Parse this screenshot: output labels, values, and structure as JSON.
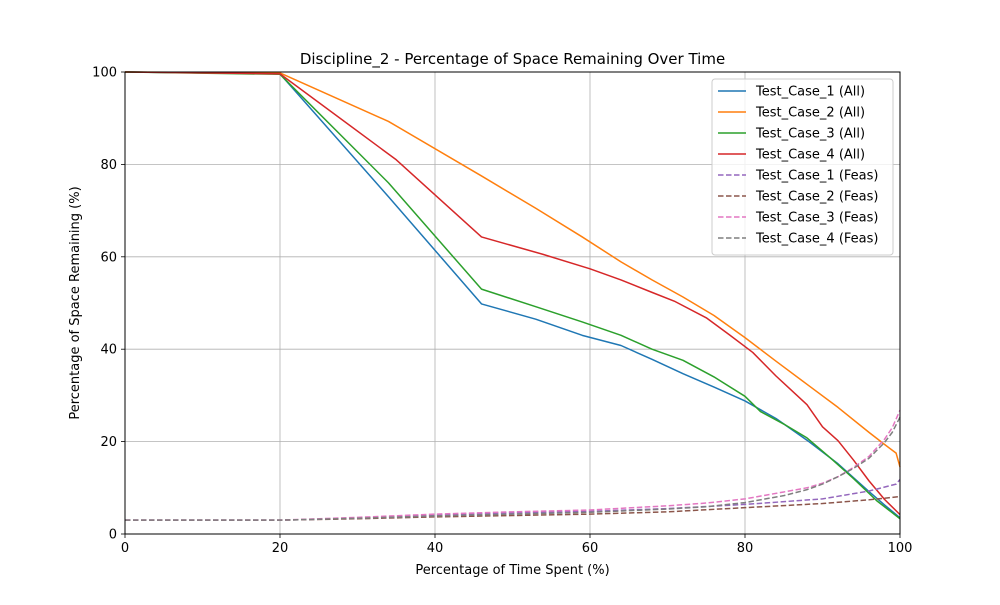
{
  "chart_data": {
    "type": "line",
    "title": "Discipline_2 - Percentage of Space Remaining Over Time",
    "xlabel": "Percentage of Time Spent (%)",
    "ylabel": "Percentage of Space Remaining (%)",
    "xlim": [
      0,
      100
    ],
    "ylim": [
      0,
      100
    ],
    "xticks": [
      0,
      20,
      40,
      60,
      80,
      100
    ],
    "yticks": [
      0,
      20,
      40,
      60,
      80,
      100
    ],
    "grid": true,
    "legend_position": "top-right",
    "series": [
      {
        "name": "Test_Case_1 (All)",
        "color": "#1f77b4",
        "style": "solid",
        "x": [
          0,
          20,
          34,
          46,
          53,
          59,
          64,
          68,
          72,
          76,
          80,
          84,
          88,
          92,
          96,
          98,
          100
        ],
        "y": [
          100,
          99.6,
          73,
          49.8,
          46.5,
          43,
          40.8,
          37.8,
          34.7,
          31.8,
          28.8,
          25,
          20.3,
          15.2,
          9.2,
          6.3,
          3.5
        ]
      },
      {
        "name": "Test_Case_2 (All)",
        "color": "#ff7f0e",
        "style": "solid",
        "x": [
          0,
          20,
          34,
          46,
          53,
          59,
          64,
          68,
          72,
          76,
          80,
          84,
          88,
          92,
          96,
          98,
          99.5,
          100
        ],
        "y": [
          100,
          99.8,
          89.3,
          77.5,
          70.5,
          64.3,
          58.9,
          55,
          51.3,
          47.3,
          42.5,
          37.4,
          32.4,
          27.4,
          22,
          19.4,
          17.5,
          14.5
        ]
      },
      {
        "name": "Test_Case_3 (All)",
        "color": "#2ca02c",
        "style": "solid",
        "x": [
          0,
          20,
          34,
          46,
          53,
          59,
          64,
          68,
          72,
          76,
          80,
          82,
          85,
          88,
          91,
          94,
          97,
          100
        ],
        "y": [
          100,
          99.5,
          76,
          53,
          49.2,
          45.9,
          43,
          40,
          37.6,
          34,
          29.8,
          26.5,
          23.8,
          20.8,
          16.5,
          12,
          7.2,
          3.3
        ]
      },
      {
        "name": "Test_Case_4 (All)",
        "color": "#d62728",
        "style": "solid",
        "x": [
          0,
          20,
          35,
          46,
          54,
          60,
          64,
          68,
          71,
          75,
          78,
          81,
          84,
          88,
          90,
          92,
          94,
          96,
          98,
          100
        ],
        "y": [
          100,
          99.6,
          81,
          64.3,
          60.5,
          57.4,
          55,
          52.3,
          50.3,
          46.8,
          43.1,
          39.3,
          34.2,
          28,
          23.2,
          20.2,
          16,
          11.5,
          7.5,
          4.2
        ]
      },
      {
        "name": "Test_Case_1 (Feas)",
        "color": "#9467bd",
        "style": "dashed",
        "x": [
          0,
          20,
          30,
          40,
          50,
          60,
          70,
          80,
          90,
          96,
          99.5,
          100
        ],
        "y": [
          3,
          3,
          3.4,
          4.1,
          4.6,
          4.9,
          5.5,
          6.4,
          7.6,
          9.3,
          10.8,
          11.8
        ]
      },
      {
        "name": "Test_Case_2 (Feas)",
        "color": "#8c564b",
        "style": "dashed",
        "x": [
          0,
          20,
          30,
          40,
          50,
          60,
          70,
          80,
          90,
          96,
          100
        ],
        "y": [
          3,
          3,
          3.3,
          3.7,
          4,
          4.3,
          4.8,
          5.7,
          6.6,
          7.4,
          8.1
        ]
      },
      {
        "name": "Test_Case_3 (Feas)",
        "color": "#e377c2",
        "style": "dashed",
        "x": [
          0,
          20,
          30,
          40,
          50,
          60,
          70,
          75,
          80,
          85,
          88,
          90,
          92,
          94,
          96,
          98,
          99,
          100
        ],
        "y": [
          3,
          3,
          3.6,
          4.3,
          4.8,
          5.2,
          6.1,
          6.7,
          7.6,
          9.1,
          10,
          11,
          12.4,
          14.4,
          16.8,
          20.5,
          23,
          26.8
        ]
      },
      {
        "name": "Test_Case_4 (Feas)",
        "color": "#7f7f7f",
        "style": "dashed",
        "x": [
          0,
          20,
          30,
          40,
          50,
          60,
          70,
          75,
          80,
          85,
          88,
          90,
          92,
          94,
          96,
          98,
          99,
          100
        ],
        "y": [
          3,
          3,
          3.4,
          3.9,
          4.3,
          4.7,
          5.4,
          5.9,
          6.8,
          8.3,
          9.6,
          10.8,
          12.4,
          14.2,
          16.4,
          19.8,
          22,
          25.3
        ]
      }
    ]
  }
}
